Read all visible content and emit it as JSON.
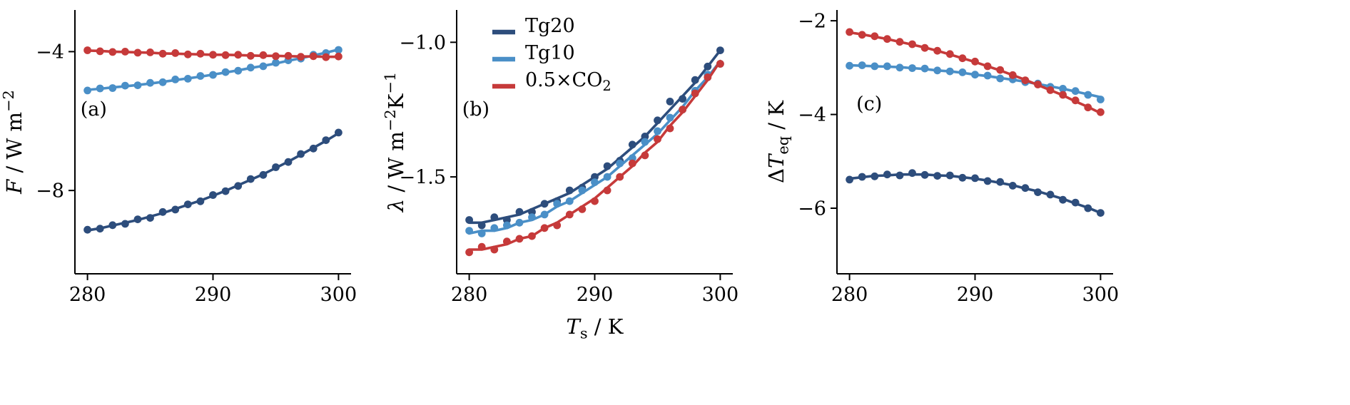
{
  "figure": {
    "background": "#ffffff",
    "axis_color": "#000000",
    "colors": {
      "tg20": "#2d4d7c",
      "tg10": "#4a8fc7",
      "half_co2": "#c63a3a"
    }
  },
  "chart_data": [
    {
      "type": "scatter",
      "id": "a",
      "panel_label": "(a)",
      "label_fx": 0.02,
      "label_fy": 0.4,
      "ylabel_segments": [
        {
          "t": "F",
          "s": "i"
        },
        {
          "t": " / W m",
          "s": "n"
        },
        {
          "t": "−2",
          "s": "sup"
        }
      ],
      "xlabel_segments": null,
      "xlim": [
        279,
        301
      ],
      "ylim": [
        -10.4,
        -2.8
      ],
      "x_ticks": [
        {
          "v": 280,
          "label": "280"
        },
        {
          "v": 290,
          "label": "290"
        },
        {
          "v": 300,
          "label": "300"
        }
      ],
      "y_ticks": [
        {
          "v": -4,
          "label": "−4"
        },
        {
          "v": -8,
          "label": "−8"
        }
      ],
      "x": [
        280,
        281,
        282,
        283,
        284,
        285,
        286,
        287,
        288,
        289,
        290,
        291,
        292,
        293,
        294,
        295,
        296,
        297,
        298,
        299,
        300
      ],
      "series": [
        {
          "name": "Tg20",
          "color": "#2d4d7c",
          "points": [
            -9.13,
            -9.1,
            -9.0,
            -8.96,
            -8.83,
            -8.79,
            -8.62,
            -8.55,
            -8.4,
            -8.31,
            -8.13,
            -8.02,
            -7.87,
            -7.67,
            -7.55,
            -7.33,
            -7.18,
            -6.95,
            -6.79,
            -6.55,
            -6.33
          ],
          "fit": [
            -9.15,
            -9.09,
            -9.01,
            -8.93,
            -8.85,
            -8.75,
            -8.65,
            -8.53,
            -8.41,
            -8.29,
            -8.15,
            -8.01,
            -7.85,
            -7.69,
            -7.53,
            -7.35,
            -7.17,
            -6.97,
            -6.77,
            -6.57,
            -6.35
          ]
        },
        {
          "name": "Tg10",
          "color": "#4a8fc7",
          "points": [
            -5.12,
            -5.06,
            -5.05,
            -4.98,
            -4.97,
            -4.9,
            -4.88,
            -4.8,
            -4.78,
            -4.7,
            -4.67,
            -4.59,
            -4.55,
            -4.46,
            -4.42,
            -4.32,
            -4.25,
            -4.2,
            -4.09,
            -4.04,
            -3.95
          ],
          "fit": [
            -5.1,
            -5.07,
            -5.03,
            -5.0,
            -4.96,
            -4.92,
            -4.87,
            -4.82,
            -4.77,
            -4.72,
            -4.66,
            -4.6,
            -4.54,
            -4.47,
            -4.41,
            -4.34,
            -4.26,
            -4.19,
            -4.11,
            -4.03,
            -3.94
          ]
        },
        {
          "name": "0.5×CO2",
          "color": "#c63a3a",
          "points": [
            -3.96,
            -3.99,
            -4.01,
            -4.0,
            -4.03,
            -4.02,
            -4.06,
            -4.04,
            -4.08,
            -4.06,
            -4.09,
            -4.1,
            -4.09,
            -4.12,
            -4.1,
            -4.13,
            -4.12,
            -4.15,
            -4.13,
            -4.16,
            -4.14
          ],
          "fit": [
            -3.97,
            -3.98,
            -4.0,
            -4.01,
            -4.02,
            -4.03,
            -4.05,
            -4.06,
            -4.07,
            -4.08,
            -4.09,
            -4.09,
            -4.1,
            -4.11,
            -4.12,
            -4.12,
            -4.13,
            -4.14,
            -4.14,
            -4.15,
            -4.15
          ]
        }
      ]
    },
    {
      "type": "scatter",
      "id": "b",
      "panel_label": "(b)",
      "label_fx": 0.02,
      "label_fy": 0.4,
      "ylabel_segments": [
        {
          "t": "λ",
          "s": "i"
        },
        {
          "t": " / W m",
          "s": "n"
        },
        {
          "t": "−2",
          "s": "sup"
        },
        {
          "t": "K",
          "s": "n"
        },
        {
          "t": "−1",
          "s": "sup"
        }
      ],
      "xlabel_segments": [
        {
          "t": "T",
          "s": "i"
        },
        {
          "t": "s",
          "s": "sub"
        },
        {
          "t": " / K",
          "s": "n"
        }
      ],
      "xlim": [
        279,
        301
      ],
      "ylim": [
        -1.86,
        -0.88
      ],
      "x_ticks": [
        {
          "v": 280,
          "label": "280"
        },
        {
          "v": 290,
          "label": "290"
        },
        {
          "v": 300,
          "label": "300"
        }
      ],
      "y_ticks": [
        {
          "v": -1.0,
          "label": "−1.0"
        },
        {
          "v": -1.5,
          "label": "−1.5"
        }
      ],
      "x": [
        280,
        281,
        282,
        283,
        284,
        285,
        286,
        287,
        288,
        289,
        290,
        291,
        292,
        293,
        294,
        295,
        296,
        297,
        298,
        299,
        300
      ],
      "legend": {
        "entries": [
          {
            "label": [
              {
                "t": "Tg20",
                "s": "n"
              }
            ],
            "color": "#2d4d7c"
          },
          {
            "label": [
              {
                "t": "Tg10",
                "s": "n"
              }
            ],
            "color": "#4a8fc7"
          },
          {
            "label": [
              {
                "t": "0.5×CO",
                "s": "n"
              },
              {
                "t": "2",
                "s": "sub"
              }
            ],
            "color": "#c63a3a"
          }
        ]
      },
      "series": [
        {
          "name": "Tg20",
          "color": "#2d4d7c",
          "points": [
            -1.66,
            -1.68,
            -1.65,
            -1.66,
            -1.63,
            -1.63,
            -1.6,
            -1.59,
            -1.55,
            -1.54,
            -1.5,
            -1.46,
            -1.44,
            -1.38,
            -1.35,
            -1.29,
            -1.22,
            -1.21,
            -1.14,
            -1.09,
            -1.03
          ],
          "fit": [
            -1.67,
            -1.67,
            -1.66,
            -1.65,
            -1.64,
            -1.62,
            -1.6,
            -1.58,
            -1.56,
            -1.53,
            -1.5,
            -1.47,
            -1.43,
            -1.39,
            -1.35,
            -1.3,
            -1.25,
            -1.2,
            -1.15,
            -1.09,
            -1.03
          ]
        },
        {
          "name": "Tg10",
          "color": "#4a8fc7",
          "points": [
            -1.7,
            -1.71,
            -1.69,
            -1.68,
            -1.67,
            -1.65,
            -1.64,
            -1.6,
            -1.59,
            -1.55,
            -1.52,
            -1.5,
            -1.45,
            -1.43,
            -1.37,
            -1.33,
            -1.28,
            -1.25,
            -1.18,
            -1.12,
            -1.08
          ],
          "fit": [
            -1.71,
            -1.7,
            -1.7,
            -1.69,
            -1.67,
            -1.66,
            -1.64,
            -1.61,
            -1.59,
            -1.56,
            -1.53,
            -1.5,
            -1.46,
            -1.42,
            -1.38,
            -1.34,
            -1.29,
            -1.24,
            -1.18,
            -1.13,
            -1.07
          ]
        },
        {
          "name": "0.5×CO2",
          "color": "#c63a3a",
          "points": [
            -1.78,
            -1.76,
            -1.77,
            -1.74,
            -1.73,
            -1.72,
            -1.69,
            -1.68,
            -1.64,
            -1.62,
            -1.59,
            -1.55,
            -1.5,
            -1.45,
            -1.42,
            -1.36,
            -1.32,
            -1.25,
            -1.19,
            -1.13,
            -1.08
          ],
          "fit": [
            -1.77,
            -1.77,
            -1.76,
            -1.75,
            -1.73,
            -1.72,
            -1.69,
            -1.67,
            -1.64,
            -1.61,
            -1.58,
            -1.54,
            -1.5,
            -1.46,
            -1.41,
            -1.37,
            -1.31,
            -1.26,
            -1.2,
            -1.14,
            -1.07
          ]
        }
      ]
    },
    {
      "type": "scatter",
      "id": "c",
      "panel_label": "(c)",
      "label_fx": 0.07,
      "label_fy": 0.38,
      "ylabel_segments": [
        {
          "t": "Δ",
          "s": "n"
        },
        {
          "t": "T",
          "s": "i"
        },
        {
          "t": "eq",
          "s": "sub"
        },
        {
          "t": " / K",
          "s": "n"
        }
      ],
      "xlabel_segments": null,
      "xlim": [
        279,
        301
      ],
      "ylim": [
        -7.4,
        -1.77
      ],
      "x_ticks": [
        {
          "v": 280,
          "label": "280"
        },
        {
          "v": 290,
          "label": "290"
        },
        {
          "v": 300,
          "label": "300"
        }
      ],
      "y_ticks": [
        {
          "v": -2,
          "label": "−2"
        },
        {
          "v": -4,
          "label": "−4"
        },
        {
          "v": -6,
          "label": "−6"
        }
      ],
      "x": [
        280,
        281,
        282,
        283,
        284,
        285,
        286,
        287,
        288,
        289,
        290,
        291,
        292,
        293,
        294,
        295,
        296,
        297,
        298,
        299,
        300
      ],
      "series": [
        {
          "name": "Tg20",
          "color": "#2d4d7c",
          "points": [
            -5.39,
            -5.33,
            -5.32,
            -5.28,
            -5.3,
            -5.25,
            -5.29,
            -5.31,
            -5.3,
            -5.35,
            -5.36,
            -5.42,
            -5.44,
            -5.52,
            -5.57,
            -5.66,
            -5.71,
            -5.82,
            -5.88,
            -6.0,
            -6.1
          ],
          "fit": [
            -5.37,
            -5.34,
            -5.31,
            -5.3,
            -5.28,
            -5.28,
            -5.28,
            -5.3,
            -5.31,
            -5.34,
            -5.37,
            -5.41,
            -5.46,
            -5.51,
            -5.58,
            -5.64,
            -5.72,
            -5.8,
            -5.9,
            -5.99,
            -6.1
          ]
        },
        {
          "name": "Tg10",
          "color": "#4a8fc7",
          "points": [
            -2.96,
            -2.95,
            -2.97,
            -2.97,
            -3.0,
            -3.01,
            -3.02,
            -3.06,
            -3.08,
            -3.1,
            -3.15,
            -3.17,
            -3.23,
            -3.25,
            -3.31,
            -3.34,
            -3.41,
            -3.45,
            -3.5,
            -3.58,
            -3.68
          ],
          "fit": [
            -2.95,
            -2.96,
            -2.97,
            -2.98,
            -2.99,
            -3.01,
            -3.03,
            -3.06,
            -3.08,
            -3.11,
            -3.15,
            -3.18,
            -3.22,
            -3.26,
            -3.3,
            -3.35,
            -3.4,
            -3.45,
            -3.51,
            -3.57,
            -3.63
          ]
        },
        {
          "name": "0.5×CO2",
          "color": "#c63a3a",
          "points": [
            -2.24,
            -2.3,
            -2.33,
            -2.39,
            -2.45,
            -2.5,
            -2.58,
            -2.64,
            -2.71,
            -2.8,
            -2.87,
            -2.97,
            -3.05,
            -3.16,
            -3.27,
            -3.36,
            -3.48,
            -3.58,
            -3.7,
            -3.85,
            -3.95
          ],
          "fit": [
            -2.25,
            -2.29,
            -2.34,
            -2.39,
            -2.45,
            -2.51,
            -2.57,
            -2.64,
            -2.72,
            -2.8,
            -2.88,
            -2.97,
            -3.06,
            -3.16,
            -3.26,
            -3.37,
            -3.48,
            -3.59,
            -3.72,
            -3.84,
            -3.97
          ]
        }
      ]
    }
  ]
}
